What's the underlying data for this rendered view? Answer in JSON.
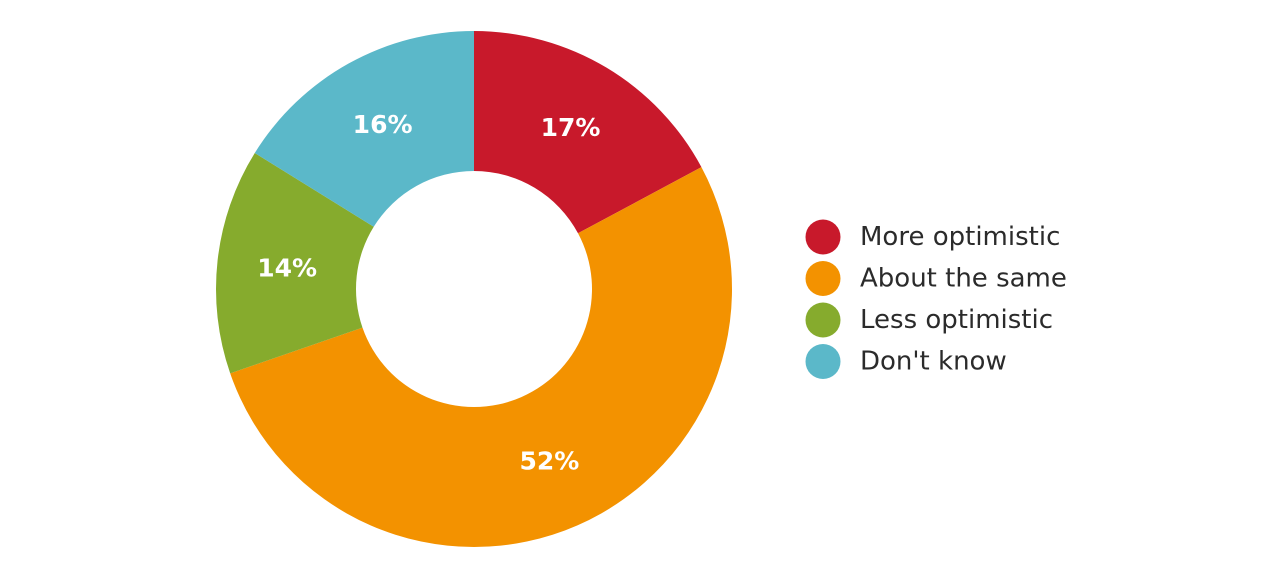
{
  "chart_data": {
    "type": "pie",
    "variant": "donut",
    "categories": [
      "More optimistic",
      "About the same",
      "Less optimistic",
      "Don't know"
    ],
    "values": [
      17,
      52,
      14,
      16
    ],
    "value_labels": [
      "17%",
      "52%",
      "14%",
      "16%"
    ],
    "colors": [
      "#c8192b",
      "#f39200",
      "#86ab2d",
      "#5bb8c9"
    ],
    "legend_position": "right",
    "start_angle": "12 o'clock",
    "direction": "clockwise"
  }
}
